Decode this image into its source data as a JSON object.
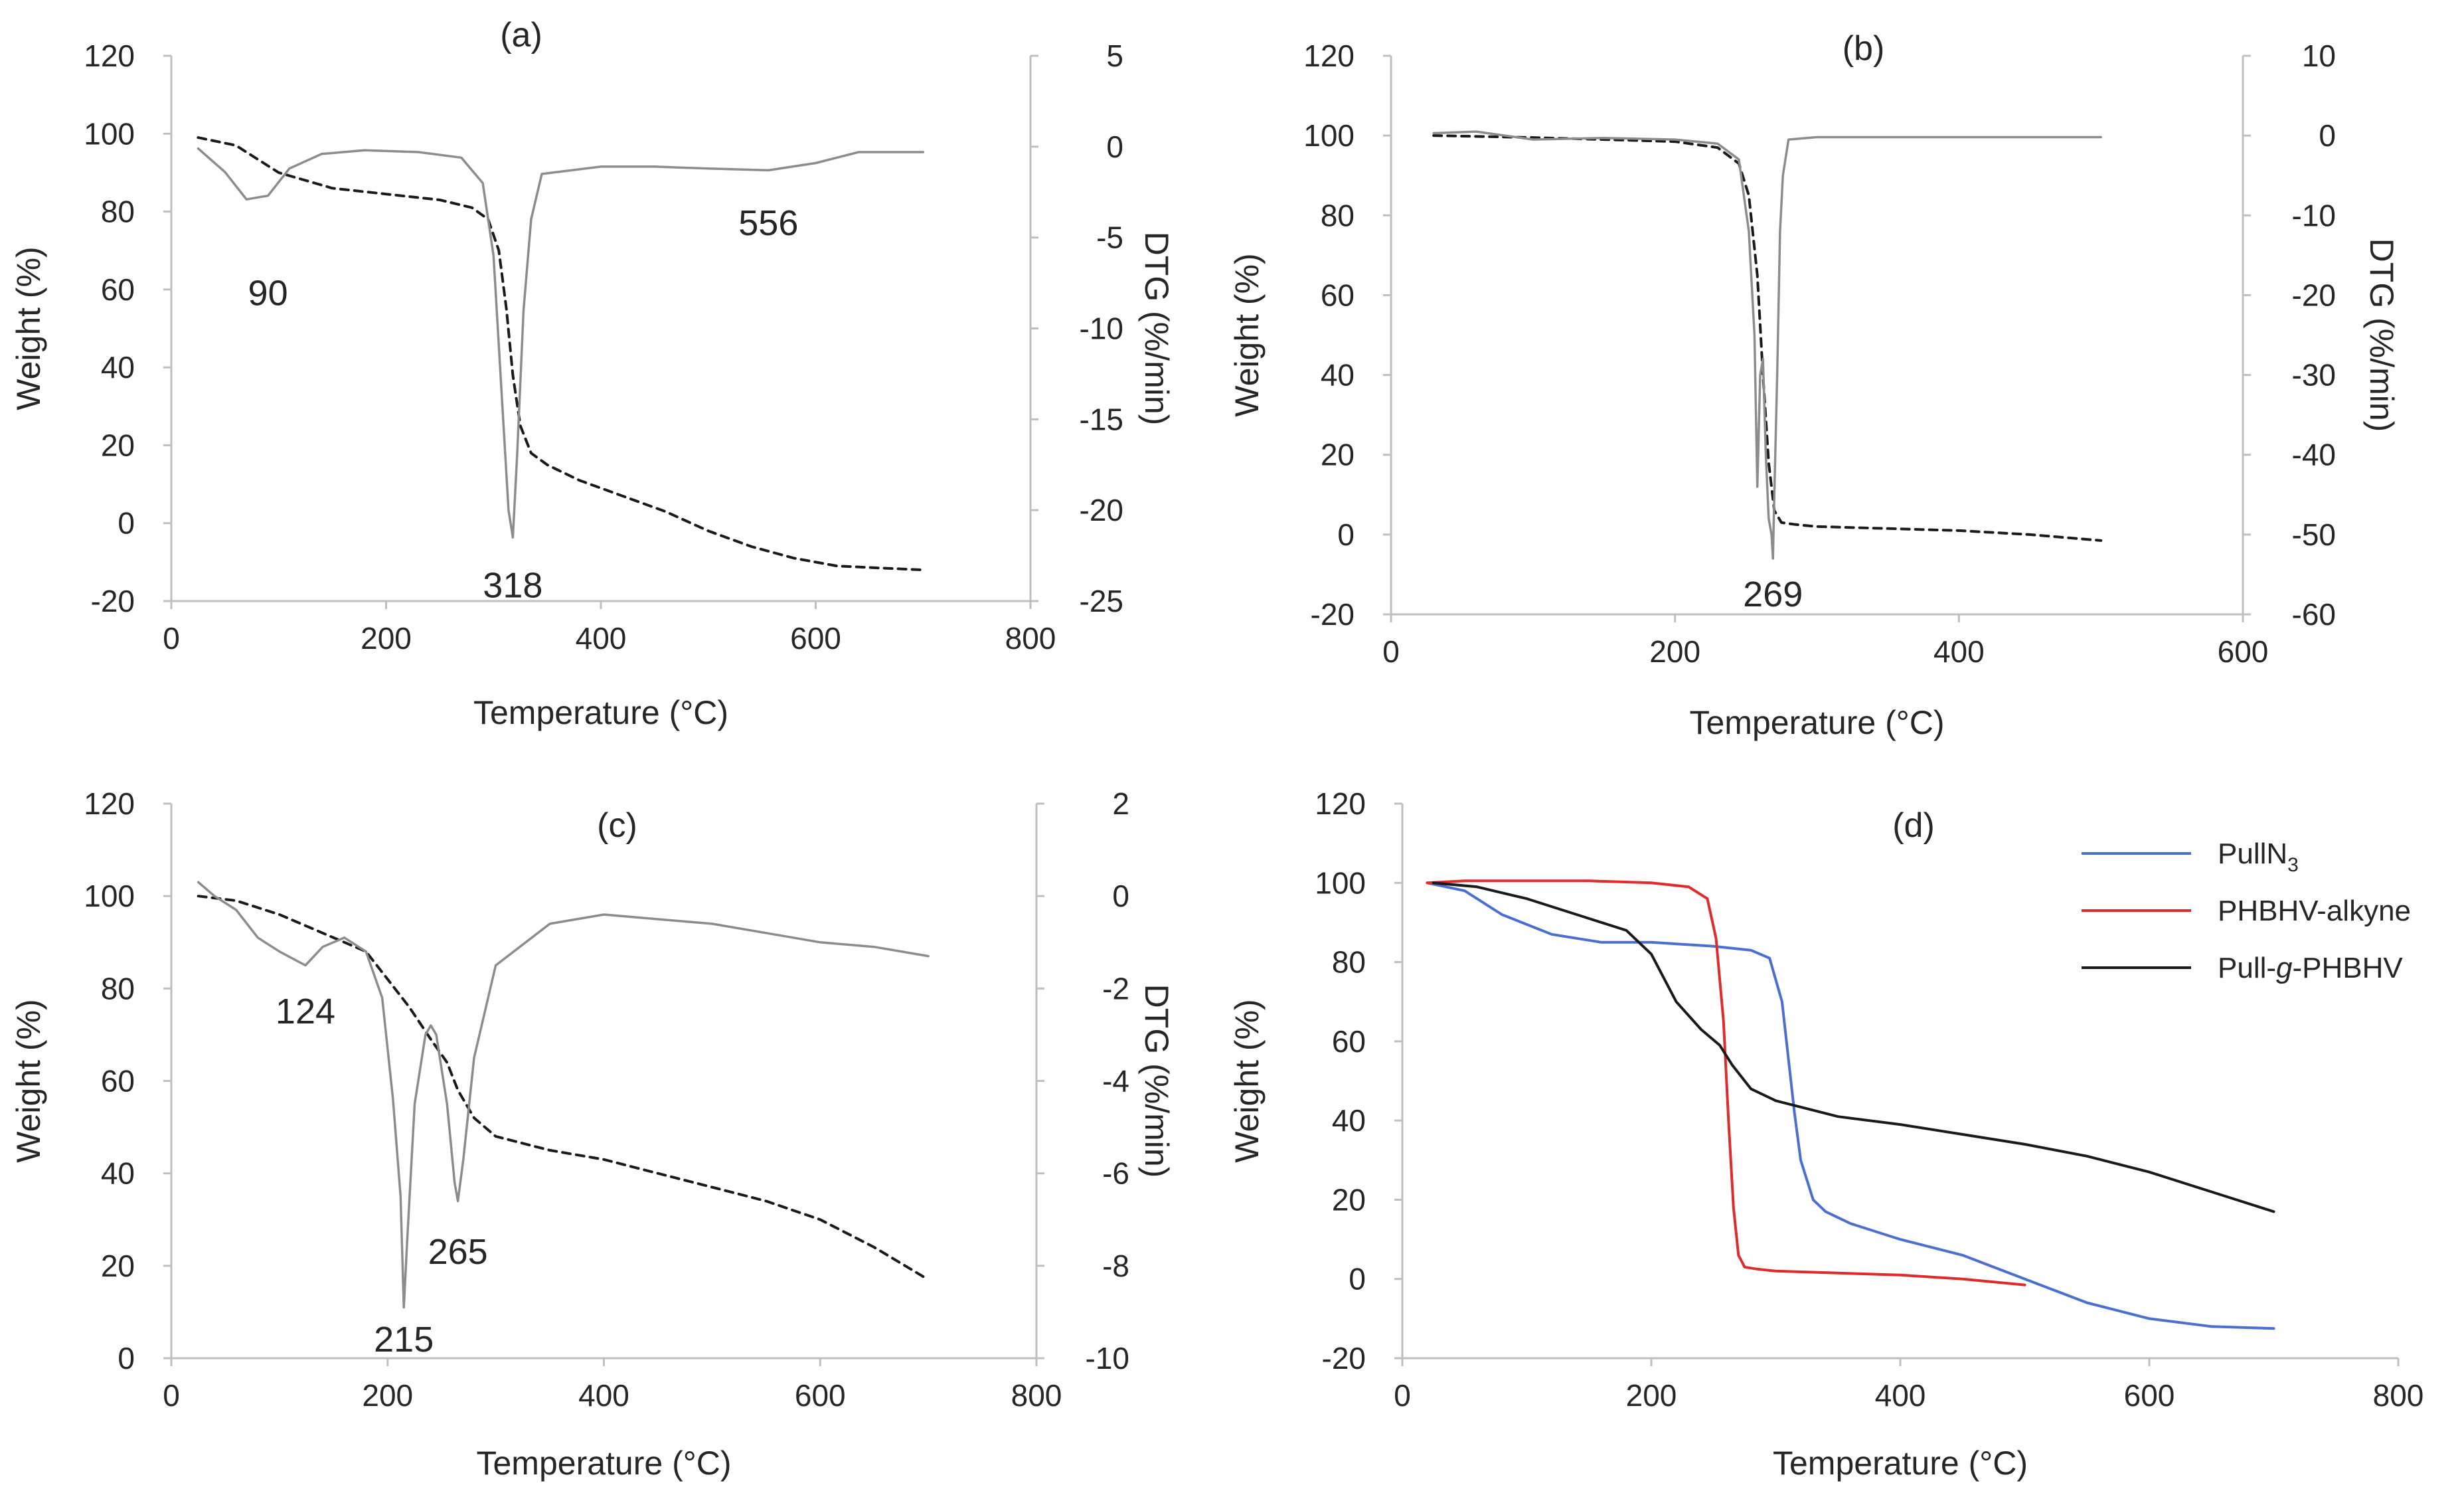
{
  "figure": {
    "description_free": true
  },
  "colors": {
    "weight_curve": "#1a1a1a",
    "dtg_curve": "#8c8c8c",
    "dtg_curve_light": "#a6a6a6",
    "axis": "#bfbfbf",
    "text": "#262626",
    "pulln3": "#4a6fd1",
    "phbhv_alkyne": "#e02b2b",
    "pull_g_phbhv": "#1a1a1a"
  },
  "chart_data": [
    {
      "id": "a",
      "type": "line",
      "title": "(a)",
      "xlabel": "Temperature (°C)",
      "ylabel": "Weight (%)",
      "y2label": "DTG (%/min)",
      "xlim": [
        0,
        800
      ],
      "ylim": [
        -20,
        120
      ],
      "y2lim": [
        -25,
        5
      ],
      "xticks": [
        0,
        200,
        400,
        600,
        800
      ],
      "yticks": [
        -20,
        0,
        20,
        40,
        60,
        80,
        100,
        120
      ],
      "y2ticks": [
        -25,
        -20,
        -15,
        -10,
        -5,
        0,
        5
      ],
      "series": [
        {
          "name": "Weight",
          "axis": "left",
          "style": "dashed",
          "x": [
            25,
            60,
            100,
            150,
            200,
            250,
            280,
            295,
            305,
            312,
            318,
            325,
            335,
            350,
            380,
            420,
            460,
            500,
            540,
            580,
            620,
            660,
            700
          ],
          "y": [
            99,
            97,
            90,
            86,
            84.5,
            83,
            81,
            78,
            70,
            55,
            38,
            25,
            18,
            15,
            11,
            7,
            3,
            -2,
            -6,
            -9,
            -11,
            -11.5,
            -12
          ]
        },
        {
          "name": "DTG",
          "axis": "right",
          "style": "solid",
          "x": [
            25,
            50,
            70,
            90,
            110,
            140,
            180,
            230,
            270,
            290,
            300,
            308,
            314,
            318,
            322,
            328,
            335,
            345,
            400,
            450,
            500,
            556,
            600,
            640,
            700
          ],
          "y": [
            -0.1,
            -1.4,
            -2.9,
            -2.7,
            -1.2,
            -0.4,
            -0.2,
            -0.3,
            -0.6,
            -2,
            -6,
            -14,
            -20,
            -21.5,
            -17,
            -9,
            -4,
            -1.5,
            -1.1,
            -1.1,
            -1.2,
            -1.3,
            -0.9,
            -0.3,
            -0.3
          ]
        }
      ],
      "annotations": [
        {
          "label": "90",
          "x": 90,
          "y": 59,
          "axis": "left"
        },
        {
          "label": "318",
          "x": 318,
          "y": -16,
          "axis": "left"
        },
        {
          "label": "556",
          "x": 556,
          "y": 77,
          "axis": "left"
        }
      ]
    },
    {
      "id": "b",
      "type": "line",
      "title": "(b)",
      "xlabel": "Temperature (°C)",
      "ylabel": "Weight (%)",
      "y2label": "DTG (%/min)",
      "xlim": [
        0,
        600
      ],
      "ylim": [
        -20,
        120
      ],
      "y2lim": [
        -60,
        10
      ],
      "xticks": [
        0,
        200,
        400,
        600
      ],
      "yticks": [
        -20,
        0,
        20,
        40,
        60,
        80,
        100,
        120
      ],
      "y2ticks": [
        -60,
        -50,
        -40,
        -30,
        -20,
        -10,
        0,
        10
      ],
      "series": [
        {
          "name": "Weight",
          "axis": "left",
          "style": "dashed",
          "x": [
            30,
            100,
            150,
            200,
            230,
            245,
            252,
            258,
            262,
            266,
            270,
            275,
            285,
            300,
            350,
            400,
            450,
            500
          ],
          "y": [
            100,
            99.5,
            99,
            98.5,
            97,
            93,
            85,
            65,
            40,
            18,
            6,
            3,
            2.5,
            2,
            1.5,
            1,
            0,
            -1.5
          ]
        },
        {
          "name": "DTG",
          "axis": "right",
          "style": "solid",
          "x": [
            30,
            60,
            100,
            150,
            200,
            230,
            245,
            252,
            256,
            258,
            260,
            262,
            264,
            266,
            268,
            269,
            270,
            272,
            274,
            276,
            280,
            300,
            350,
            400,
            450,
            500
          ],
          "y": [
            0.3,
            0.5,
            -0.5,
            -0.3,
            -0.5,
            -1,
            -3,
            -12,
            -25,
            -44,
            -30,
            -28,
            -40,
            -48,
            -50,
            -53,
            -45,
            -30,
            -12,
            -5,
            -0.5,
            -0.2,
            -0.2,
            -0.2,
            -0.2,
            -0.2
          ]
        }
      ],
      "annotations": [
        {
          "label": "269",
          "x": 269,
          "y": -15,
          "axis": "left"
        }
      ]
    },
    {
      "id": "c",
      "type": "line",
      "title": "(c)",
      "xlabel": "Temperature (°C)",
      "ylabel": "Weight (%)",
      "y2label": "DTG (%/min)",
      "xlim": [
        0,
        800
      ],
      "ylim": [
        0,
        120
      ],
      "y2lim": [
        -10,
        2
      ],
      "xticks": [
        0,
        200,
        400,
        600,
        800
      ],
      "yticks": [
        0,
        20,
        40,
        60,
        80,
        100,
        120
      ],
      "y2ticks": [
        -10,
        -8,
        -6,
        -4,
        -2,
        0,
        2
      ],
      "series": [
        {
          "name": "Weight",
          "axis": "left",
          "style": "dashed",
          "x": [
            25,
            60,
            100,
            150,
            180,
            200,
            220,
            240,
            255,
            265,
            280,
            300,
            350,
            400,
            450,
            500,
            550,
            600,
            650,
            700
          ],
          "y": [
            100,
            99,
            96,
            91,
            88,
            82,
            76,
            69,
            64,
            58,
            52,
            48,
            45,
            43,
            40,
            37,
            34,
            30,
            24,
            17
          ]
        },
        {
          "name": "DTG",
          "axis": "right",
          "style": "solid",
          "x": [
            25,
            40,
            60,
            80,
            100,
            124,
            140,
            160,
            180,
            195,
            205,
            212,
            215,
            218,
            225,
            235,
            240,
            245,
            255,
            262,
            265,
            270,
            280,
            300,
            350,
            400,
            450,
            500,
            550,
            600,
            650,
            700
          ],
          "y": [
            0.3,
            0,
            -0.3,
            -0.9,
            -1.2,
            -1.5,
            -1.1,
            -0.9,
            -1.2,
            -2.2,
            -4.4,
            -6.5,
            -8.9,
            -7.5,
            -4.5,
            -3,
            -2.8,
            -3,
            -4.5,
            -6.2,
            -6.6,
            -5.7,
            -3.5,
            -1.5,
            -0.6,
            -0.4,
            -0.5,
            -0.6,
            -0.8,
            -1,
            -1.1,
            -1.3
          ]
        }
      ],
      "annotations": [
        {
          "label": "124",
          "x": 124,
          "y": 75,
          "axis": "left"
        },
        {
          "label": "215",
          "x": 215,
          "y": 4,
          "axis": "left"
        },
        {
          "label": "265",
          "x": 265,
          "y": 23,
          "axis": "left"
        }
      ]
    },
    {
      "id": "d",
      "type": "line",
      "title": "(d)",
      "xlabel": "Temperature (°C)",
      "ylabel": "Weight (%)",
      "xlim": [
        0,
        800
      ],
      "ylim": [
        -20,
        120
      ],
      "xticks": [
        0,
        200,
        400,
        600,
        800
      ],
      "yticks": [
        -20,
        0,
        20,
        40,
        60,
        80,
        100,
        120
      ],
      "legend": "top-right",
      "series": [
        {
          "name": "PullN3",
          "legend_main": "PullN",
          "legend_sub": "3",
          "color": "#4a6fd1",
          "x": [
            20,
            50,
            80,
            120,
            160,
            200,
            250,
            280,
            295,
            305,
            315,
            320,
            330,
            340,
            360,
            400,
            450,
            500,
            550,
            600,
            650,
            700
          ],
          "y": [
            100,
            98,
            92,
            87,
            85,
            85,
            84,
            83,
            81,
            70,
            42,
            30,
            20,
            17,
            14,
            10,
            6,
            0,
            -6,
            -10,
            -12,
            -12.5
          ]
        },
        {
          "name": "PHBHV-alkyne",
          "legend_main": "PHBHV-alkyne",
          "legend_sub": "",
          "color": "#e02b2b",
          "x": [
            20,
            50,
            100,
            150,
            200,
            230,
            245,
            252,
            258,
            262,
            266,
            270,
            275,
            285,
            300,
            350,
            400,
            450,
            500
          ],
          "y": [
            100,
            100.5,
            100.5,
            100.5,
            100,
            99,
            96,
            86,
            65,
            40,
            18,
            6,
            3,
            2.5,
            2,
            1.5,
            1,
            0,
            -1.5
          ]
        },
        {
          "name": "Pull-g-PHBHV",
          "legend_main": "Pull-",
          "legend_italic": "g",
          "legend_tail": "-PHBHV",
          "color": "#1a1a1a",
          "x": [
            25,
            60,
            100,
            150,
            180,
            200,
            220,
            240,
            255,
            265,
            280,
            300,
            350,
            400,
            450,
            500,
            550,
            600,
            650,
            700
          ],
          "y": [
            100,
            99,
            96,
            91,
            88,
            82,
            70,
            63,
            59,
            54,
            48,
            45,
            41,
            39,
            36.5,
            34,
            31,
            27,
            22,
            17
          ]
        }
      ]
    }
  ]
}
